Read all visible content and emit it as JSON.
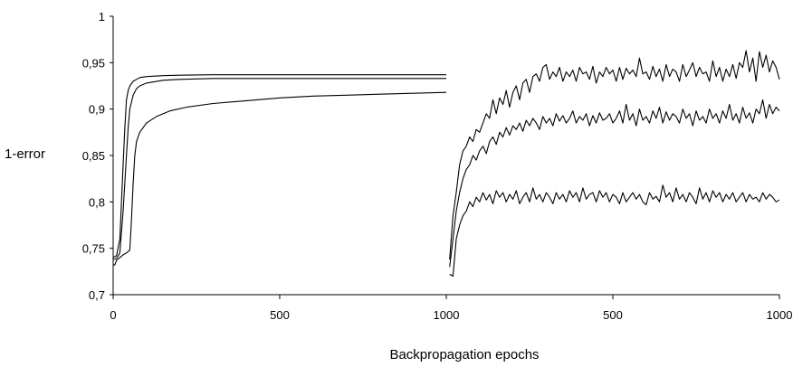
{
  "chart_data": {
    "type": "line",
    "title": "",
    "xlabel": "Backpropagation epochs",
    "ylabel": "1-error",
    "ylim": [
      0.7,
      1.0
    ],
    "yticks": [
      0.7,
      0.75,
      0.8,
      0.85,
      0.9,
      0.95,
      1.0
    ],
    "ytick_labels": [
      "0,7",
      "0,75",
      "0,8",
      "0,85",
      "0,9",
      "0,95",
      "1"
    ],
    "panels": [
      {
        "xlim": [
          0,
          1000
        ],
        "xticks": [
          0,
          500,
          1000
        ],
        "xtick_labels": [
          "0",
          "500",
          "1000"
        ],
        "series": [
          {
            "x": [
              0,
              10,
              20,
              30,
              35,
              40,
              45,
              50,
              60,
              70,
              80,
              100,
              150,
              200,
              300,
              500,
              700,
              1000
            ],
            "values": [
              0.74,
              0.742,
              0.76,
              0.84,
              0.88,
              0.91,
              0.92,
              0.925,
              0.93,
              0.932,
              0.934,
              0.935,
              0.936,
              0.9365,
              0.937,
              0.937,
              0.937,
              0.937
            ]
          },
          {
            "x": [
              0,
              10,
              20,
              30,
              40,
              45,
              50,
              60,
              70,
              80,
              100,
              150,
              200,
              300,
              500,
              700,
              1000
            ],
            "values": [
              0.738,
              0.739,
              0.745,
              0.79,
              0.85,
              0.88,
              0.9,
              0.915,
              0.922,
              0.925,
              0.928,
              0.931,
              0.932,
              0.933,
              0.933,
              0.933,
              0.933
            ]
          },
          {
            "x": [
              0,
              5,
              10,
              20,
              30,
              40,
              50,
              55,
              60,
              65,
              70,
              80,
              100,
              130,
              170,
              220,
              300,
              400,
              500,
              600,
              700,
              800,
              900,
              1000
            ],
            "values": [
              0.732,
              0.732,
              0.737,
              0.74,
              0.743,
              0.745,
              0.748,
              0.78,
              0.82,
              0.85,
              0.865,
              0.875,
              0.885,
              0.892,
              0.898,
              0.902,
              0.906,
              0.909,
              0.912,
              0.914,
              0.915,
              0.916,
              0.917,
              0.918
            ]
          }
        ]
      },
      {
        "xlim": [
          0,
          1000
        ],
        "xticks": [
          500,
          1000
        ],
        "xtick_labels": [
          "500",
          "1000"
        ],
        "series": [
          {
            "x": [
              10,
              20,
              30,
              40,
              50,
              60,
              70,
              80,
              90,
              100,
              110,
              120,
              130,
              140,
              150,
              160,
              170,
              180,
              190,
              200,
              210,
              220,
              230,
              240,
              250,
              260,
              270,
              280,
              290,
              300,
              310,
              320,
              330,
              340,
              350,
              360,
              370,
              380,
              390,
              400,
              410,
              420,
              430,
              440,
              450,
              460,
              470,
              480,
              490,
              500,
              510,
              520,
              530,
              540,
              550,
              560,
              570,
              580,
              590,
              600,
              610,
              620,
              630,
              640,
              650,
              660,
              670,
              680,
              690,
              700,
              710,
              720,
              730,
              740,
              750,
              760,
              770,
              780,
              790,
              800,
              810,
              820,
              830,
              840,
              850,
              860,
              870,
              880,
              890,
              900,
              910,
              920,
              930,
              940,
              950,
              960,
              970,
              980,
              990,
              1000
            ],
            "values": [
              0.738,
              0.785,
              0.81,
              0.84,
              0.855,
              0.86,
              0.87,
              0.865,
              0.878,
              0.875,
              0.885,
              0.895,
              0.89,
              0.91,
              0.895,
              0.912,
              0.905,
              0.92,
              0.902,
              0.918,
              0.925,
              0.91,
              0.928,
              0.932,
              0.918,
              0.935,
              0.938,
              0.93,
              0.945,
              0.948,
              0.932,
              0.94,
              0.935,
              0.945,
              0.93,
              0.94,
              0.935,
              0.942,
              0.93,
              0.945,
              0.938,
              0.94,
              0.932,
              0.946,
              0.928,
              0.94,
              0.935,
              0.945,
              0.938,
              0.942,
              0.93,
              0.945,
              0.932,
              0.944,
              0.938,
              0.942,
              0.935,
              0.955,
              0.938,
              0.94,
              0.932,
              0.946,
              0.935,
              0.943,
              0.93,
              0.948,
              0.935,
              0.943,
              0.94,
              0.93,
              0.948,
              0.935,
              0.942,
              0.95,
              0.935,
              0.945,
              0.938,
              0.94,
              0.93,
              0.952,
              0.935,
              0.945,
              0.93,
              0.943,
              0.935,
              0.948,
              0.933,
              0.95,
              0.945,
              0.963,
              0.94,
              0.955,
              0.93,
              0.962,
              0.945,
              0.958,
              0.94,
              0.952,
              0.945,
              0.932
            ]
          },
          {
            "x": [
              10,
              20,
              30,
              40,
              50,
              60,
              70,
              80,
              90,
              100,
              110,
              120,
              130,
              140,
              150,
              160,
              170,
              180,
              190,
              200,
              210,
              220,
              230,
              240,
              250,
              260,
              270,
              280,
              290,
              300,
              310,
              320,
              330,
              340,
              350,
              360,
              370,
              380,
              390,
              400,
              410,
              420,
              430,
              440,
              450,
              460,
              470,
              480,
              490,
              500,
              510,
              520,
              530,
              540,
              550,
              560,
              570,
              580,
              590,
              600,
              610,
              620,
              630,
              640,
              650,
              660,
              670,
              680,
              690,
              700,
              710,
              720,
              730,
              740,
              750,
              760,
              770,
              780,
              790,
              800,
              810,
              820,
              830,
              840,
              850,
              860,
              870,
              880,
              890,
              900,
              910,
              920,
              930,
              940,
              950,
              960,
              970,
              980,
              990,
              1000
            ],
            "values": [
              0.73,
              0.76,
              0.79,
              0.81,
              0.825,
              0.835,
              0.84,
              0.85,
              0.845,
              0.855,
              0.86,
              0.852,
              0.865,
              0.87,
              0.862,
              0.875,
              0.87,
              0.88,
              0.872,
              0.882,
              0.878,
              0.885,
              0.876,
              0.888,
              0.882,
              0.89,
              0.885,
              0.878,
              0.892,
              0.885,
              0.89,
              0.882,
              0.895,
              0.887,
              0.893,
              0.885,
              0.89,
              0.898,
              0.885,
              0.892,
              0.888,
              0.895,
              0.882,
              0.893,
              0.885,
              0.896,
              0.888,
              0.89,
              0.895,
              0.885,
              0.89,
              0.898,
              0.885,
              0.905,
              0.888,
              0.895,
              0.882,
              0.9,
              0.888,
              0.892,
              0.885,
              0.898,
              0.89,
              0.902,
              0.885,
              0.897,
              0.888,
              0.895,
              0.892,
              0.885,
              0.9,
              0.89,
              0.895,
              0.882,
              0.898,
              0.888,
              0.892,
              0.885,
              0.9,
              0.89,
              0.895,
              0.885,
              0.898,
              0.89,
              0.905,
              0.888,
              0.895,
              0.885,
              0.902,
              0.89,
              0.896,
              0.885,
              0.9,
              0.895,
              0.91,
              0.89,
              0.905,
              0.895,
              0.902,
              0.898
            ]
          },
          {
            "x": [
              10,
              20,
              30,
              40,
              50,
              60,
              70,
              80,
              90,
              100,
              110,
              120,
              130,
              140,
              150,
              160,
              170,
              180,
              190,
              200,
              210,
              220,
              230,
              240,
              250,
              260,
              270,
              280,
              290,
              300,
              310,
              320,
              330,
              340,
              350,
              360,
              370,
              380,
              390,
              400,
              410,
              420,
              430,
              440,
              450,
              460,
              470,
              480,
              490,
              500,
              510,
              520,
              530,
              540,
              550,
              560,
              570,
              580,
              590,
              600,
              610,
              620,
              630,
              640,
              650,
              660,
              670,
              680,
              690,
              700,
              710,
              720,
              730,
              740,
              750,
              760,
              770,
              780,
              790,
              800,
              810,
              820,
              830,
              840,
              850,
              860,
              870,
              880,
              890,
              900,
              910,
              920,
              930,
              940,
              950,
              960,
              970,
              980,
              990,
              1000
            ],
            "values": [
              0.722,
              0.72,
              0.76,
              0.775,
              0.785,
              0.79,
              0.8,
              0.795,
              0.805,
              0.8,
              0.81,
              0.802,
              0.808,
              0.798,
              0.812,
              0.805,
              0.81,
              0.8,
              0.808,
              0.803,
              0.812,
              0.798,
              0.805,
              0.81,
              0.8,
              0.815,
              0.803,
              0.808,
              0.8,
              0.81,
              0.805,
              0.798,
              0.81,
              0.803,
              0.808,
              0.8,
              0.812,
              0.805,
              0.81,
              0.8,
              0.815,
              0.803,
              0.808,
              0.81,
              0.8,
              0.812,
              0.805,
              0.81,
              0.8,
              0.808,
              0.805,
              0.798,
              0.81,
              0.8,
              0.805,
              0.81,
              0.803,
              0.808,
              0.8,
              0.797,
              0.81,
              0.803,
              0.806,
              0.8,
              0.818,
              0.805,
              0.81,
              0.8,
              0.815,
              0.803,
              0.808,
              0.8,
              0.81,
              0.805,
              0.798,
              0.815,
              0.803,
              0.81,
              0.8,
              0.812,
              0.805,
              0.81,
              0.8,
              0.808,
              0.803,
              0.81,
              0.8,
              0.805,
              0.81,
              0.8,
              0.808,
              0.803,
              0.805,
              0.8,
              0.81,
              0.803,
              0.808,
              0.805,
              0.8,
              0.802
            ]
          }
        ]
      }
    ],
    "grid": false,
    "legend": "none"
  }
}
